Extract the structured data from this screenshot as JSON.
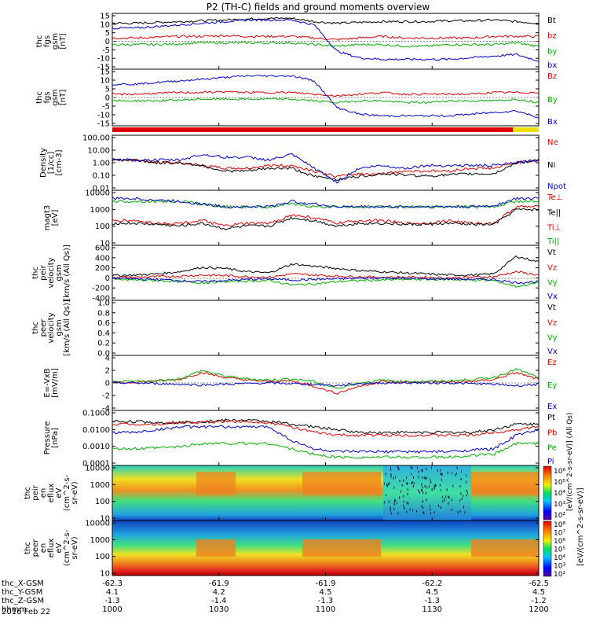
{
  "title": "P2 (TH-C) fields and ground moments overview",
  "date_label": "2016 Feb 22",
  "panels": [
    {
      "ylabel": [
        "thc",
        "fgs",
        "gsm",
        "[nT]"
      ],
      "yticks": [
        15,
        10,
        5,
        0,
        -5,
        -10,
        -15
      ],
      "ylim": [
        -17,
        17
      ],
      "legend": [
        {
          "text": "Bt",
          "color": "#000000"
        },
        {
          "text": "bz",
          "color": "#e00000"
        },
        {
          "text": "by",
          "color": "#00b000"
        },
        {
          "text": "bx",
          "color": "#0000cc"
        }
      ]
    },
    {
      "ylabel": [
        "thc",
        "fgs",
        "gsm",
        "[nT]"
      ],
      "yticks": [
        15,
        10,
        5,
        0,
        -5,
        -10,
        -15
      ],
      "ylim": [
        -17,
        17
      ],
      "legend": [
        {
          "text": "Bz",
          "color": "#e00000"
        },
        {
          "text": "By",
          "color": "#00b000"
        },
        {
          "text": "Bx",
          "color": "#0000cc"
        }
      ]
    },
    {
      "ylabel": [
        "Density",
        "[1/cc]",
        "[cm-3]"
      ],
      "yticks": [
        "100.00",
        "10.00",
        "1.00",
        "0.10",
        "0.01"
      ],
      "legend": [
        {
          "text": "Ne",
          "color": "#e00000"
        },
        {
          "text": "Ni",
          "color": "#000000"
        },
        {
          "text": "Npot",
          "color": "#0000cc"
        }
      ]
    },
    {
      "ylabel": [
        "magt3",
        "[eV]"
      ],
      "yticks": [
        "10000",
        "1000",
        "100",
        "10"
      ],
      "legend": [
        {
          "text": "Te⊥",
          "color": "#e00000"
        },
        {
          "text": "Te||",
          "color": "#000000"
        },
        {
          "text": "Ti⊥",
          "color": "#e00000"
        },
        {
          "text": "Ti||",
          "color": "#00b000"
        }
      ]
    },
    {
      "ylabel": [
        "thc",
        "peir",
        "velocity",
        "gsm",
        "[km/s (All Qs)]"
      ],
      "yticks": [
        600,
        400,
        200,
        0,
        -200,
        -400
      ],
      "legend": [
        {
          "text": "Vt",
          "color": "#000000"
        },
        {
          "text": "Vz",
          "color": "#e00000"
        },
        {
          "text": "Vy",
          "color": "#00b000"
        },
        {
          "text": "Vx",
          "color": "#0000cc"
        }
      ]
    },
    {
      "ylabel": [
        "thc",
        "peer",
        "velocity",
        "gsm",
        "[km/s (All Qs)]"
      ],
      "yticks": [
        "1.0",
        "0.8",
        "0.6",
        "0.4",
        "0.2",
        "0.0"
      ],
      "legend": [
        {
          "text": "Vt",
          "color": "#000000"
        },
        {
          "text": "Vz",
          "color": "#e00000"
        },
        {
          "text": "Vy",
          "color": "#00b000"
        },
        {
          "text": "Vx",
          "color": "#0000cc"
        }
      ]
    },
    {
      "ylabel": [
        "E=-VxB",
        "[mV/m]"
      ],
      "yticks": [
        4,
        2,
        0,
        -2,
        -4
      ],
      "legend": [
        {
          "text": "Ez",
          "color": "#e00000"
        },
        {
          "text": "Ey",
          "color": "#00b000"
        },
        {
          "text": "Ex",
          "color": "#0000cc"
        }
      ]
    },
    {
      "ylabel": [
        "Pressure",
        "[nPa]"
      ],
      "yticks": [
        "0.1000",
        "0.0100",
        "0.0010",
        "0.0001"
      ],
      "legend": [
        {
          "text": "Pt",
          "color": "#000000"
        },
        {
          "text": "Pb",
          "color": "#e00000"
        },
        {
          "text": "Pe",
          "color": "#00b000"
        },
        {
          "text": "Pi",
          "color": "#0000cc"
        }
      ]
    },
    {
      "ylabel": [
        "thc",
        "peir",
        "en",
        "eflux",
        "eV",
        "(cm^2-s-",
        "sr-eV)"
      ],
      "yticks": [
        "10000",
        "1000",
        "100",
        "10"
      ]
    },
    {
      "ylabel": [
        "thc",
        "peer",
        "en",
        "eflux",
        "eV",
        "(cm^2-s-",
        "sr-eV)"
      ],
      "yticks": [
        "10000",
        "1000",
        "100",
        "10"
      ]
    }
  ],
  "colorbar": {
    "label": "[eV/(cm^2-s-sr-eV)]",
    "label2": "[eV/(cm^2-s-sr-eV)] (All Qs)",
    "ticks_top": [
      "10⁶",
      "10⁵",
      "10⁴",
      "10³",
      "10²"
    ],
    "ticks_bottom": [
      "10⁸",
      "10⁷",
      "10⁶",
      "10⁵",
      "10⁴",
      "10³",
      "10²"
    ]
  },
  "xaxis": {
    "row_labels": [
      "thc_X-GSM",
      "thc_Y-GSM",
      "thc_Z-GSM",
      "hhmm"
    ],
    "ticks": [
      {
        "X": "-62.3",
        "Y": "4.1",
        "Z": "-1.3",
        "hhmm": "1000"
      },
      {
        "X": "-61.9",
        "Y": "4.2",
        "Z": "-1.4",
        "hhmm": "1030"
      },
      {
        "X": "-61.9",
        "Y": "4.5",
        "Z": "-1.3",
        "hhmm": "1100"
      },
      {
        "X": "-62.2",
        "Y": "4.5",
        "Z": "-1.3",
        "hhmm": "1130"
      },
      {
        "X": "-62.5",
        "Y": "4.5",
        "Z": "-1.2",
        "hhmm": "1200"
      }
    ]
  },
  "chart_data": [
    {
      "type": "line",
      "panel": 1,
      "ylabel": "thc fgs gsm [nT]",
      "ylim": [
        -17,
        17
      ],
      "series": [
        {
          "name": "Bt",
          "color": "#000000",
          "values": [
            11,
            11,
            11.5,
            12,
            12.5,
            13,
            13.5,
            14,
            14,
            12,
            11,
            11.5,
            12,
            12,
            12,
            12.5,
            12.5,
            13,
            12,
            11
          ]
        },
        {
          "name": "bz",
          "color": "#e00000",
          "values": [
            2,
            2,
            2.5,
            3,
            3,
            3.5,
            3,
            3,
            3,
            2,
            1,
            2,
            3,
            2,
            2,
            2,
            2,
            3,
            3,
            3
          ]
        },
        {
          "name": "by",
          "color": "#00b000",
          "values": [
            -2,
            -2,
            -2,
            -1.5,
            -1,
            -1,
            -1,
            -1,
            -1,
            -2,
            -3,
            -2,
            -2,
            -3,
            -3,
            -2,
            -2,
            -2,
            -1,
            -3
          ]
        },
        {
          "name": "bx",
          "color": "#0000cc",
          "values": [
            8,
            8,
            9,
            10,
            11,
            12,
            13,
            13,
            13,
            10,
            -6,
            -10,
            -11,
            -11,
            -11,
            -11,
            -10,
            -9,
            -8,
            -12
          ]
        }
      ]
    },
    {
      "type": "line",
      "panel": 5,
      "ylabel": "thc peir velocity gsm [km/s (All Qs)]",
      "ylim": [
        -400,
        600
      ],
      "series": [
        {
          "name": "Vt",
          "color": "#000000",
          "values": [
            50,
            60,
            80,
            120,
            200,
            180,
            120,
            100,
            260,
            220,
            180,
            140,
            120,
            100,
            80,
            60,
            60,
            80,
            400,
            300
          ]
        },
        {
          "name": "Vz",
          "color": "#e00000",
          "values": [
            20,
            20,
            30,
            40,
            60,
            50,
            30,
            20,
            80,
            60,
            40,
            30,
            20,
            20,
            20,
            10,
            20,
            30,
            120,
            60
          ]
        },
        {
          "name": "Vy",
          "color": "#00b000",
          "values": [
            -20,
            -30,
            -40,
            -60,
            -80,
            -60,
            -50,
            -40,
            -120,
            -100,
            -60,
            -40,
            -30,
            -20,
            -20,
            -20,
            -30,
            -40,
            -150,
            -80
          ]
        },
        {
          "name": "Vx",
          "color": "#0000cc",
          "values": [
            0,
            -10,
            -20,
            -40,
            -60,
            -40,
            -20,
            -10,
            -30,
            -20,
            -10,
            0,
            10,
            0,
            -10,
            -10,
            -20,
            -20,
            -80,
            -60
          ]
        }
      ]
    },
    {
      "type": "line",
      "panel": 7,
      "ylabel": "E=-VxB [mV/m]",
      "ylim": [
        -4,
        4
      ],
      "series": [
        {
          "name": "Ez",
          "color": "#e00000",
          "values": [
            0,
            0.1,
            0.3,
            0.5,
            1.5,
            0.8,
            0.4,
            0.2,
            0.3,
            -0.5,
            -1.5,
            -0.5,
            0.2,
            0.1,
            0.2,
            0.1,
            0.2,
            0.5,
            1.5,
            0.5
          ]
        },
        {
          "name": "Ey",
          "color": "#00b000",
          "values": [
            0.1,
            0.2,
            0.3,
            0.6,
            1.8,
            1.0,
            0.6,
            0.4,
            0.6,
            0.2,
            -0.8,
            0.0,
            0.4,
            0.2,
            0.2,
            0.3,
            0.5,
            0.8,
            2.0,
            0.8
          ]
        },
        {
          "name": "Ex",
          "color": "#0000cc",
          "values": [
            0,
            0,
            -0.1,
            -0.2,
            -0.3,
            -0.2,
            -0.1,
            0,
            -0.1,
            -0.2,
            -0.4,
            -0.1,
            0,
            0,
            0,
            0,
            -0.1,
            -0.2,
            -0.4,
            -0.2
          ]
        }
      ]
    }
  ]
}
